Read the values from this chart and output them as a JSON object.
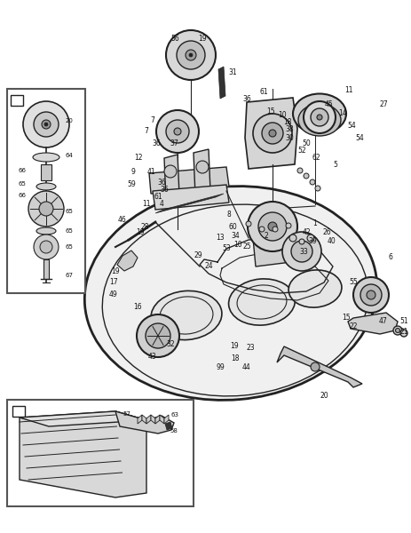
{
  "bg_color": "#ffffff",
  "line_color": "#222222",
  "fig_width": 4.64,
  "fig_height": 6.0,
  "dpi": 100
}
